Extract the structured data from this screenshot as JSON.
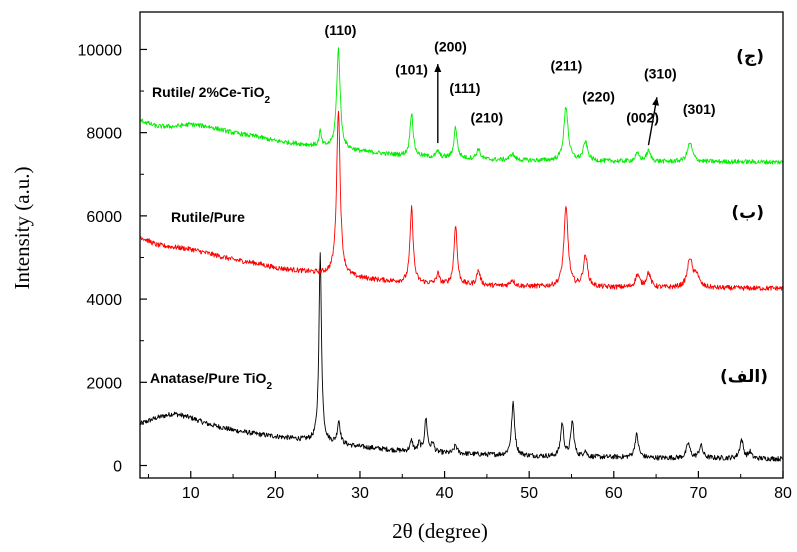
{
  "chart_data": {
    "type": "line",
    "xlabel": "2θ (degree)",
    "ylabel": "Intensity (a.u.)",
    "xlim": [
      4,
      80
    ],
    "ylim": [
      -300,
      10900
    ],
    "x_ticks": [
      10,
      20,
      30,
      40,
      50,
      60,
      70,
      80
    ],
    "y_ticks": [
      0,
      2000,
      4000,
      6000,
      8000,
      10000
    ],
    "x_tick_labels": [
      "10",
      "20",
      "30",
      "40",
      "50",
      "60",
      "70",
      "80"
    ],
    "y_tick_labels": [
      "0",
      "2000",
      "4000",
      "6000",
      "8000",
      "10000"
    ],
    "grid": false,
    "series": [
      {
        "name": "Anatase/Pure TiO",
        "name_subscript": "2",
        "tag": "(الف)",
        "color": "#000000",
        "background": [
          [
            4,
            1000
          ],
          [
            6,
            1150
          ],
          [
            8,
            1250
          ],
          [
            10,
            1150
          ],
          [
            12,
            1000
          ],
          [
            15,
            850
          ],
          [
            18,
            750
          ],
          [
            20,
            700
          ],
          [
            22,
            650
          ],
          [
            24,
            600
          ],
          [
            26,
            550
          ],
          [
            30,
            450
          ],
          [
            35,
            350
          ],
          [
            40,
            300
          ],
          [
            45,
            260
          ],
          [
            50,
            230
          ],
          [
            55,
            200
          ],
          [
            60,
            200
          ],
          [
            65,
            180
          ],
          [
            70,
            180
          ],
          [
            75,
            170
          ],
          [
            80,
            160
          ]
        ],
        "noise": 60,
        "peaks": [
          [
            25.3,
            4500,
            0.18
          ],
          [
            27.5,
            550,
            0.2
          ],
          [
            36.1,
            250,
            0.2
          ],
          [
            37.0,
            200,
            0.15
          ],
          [
            37.8,
            800,
            0.2
          ],
          [
            38.6,
            220,
            0.18
          ],
          [
            41.3,
            200,
            0.2
          ],
          [
            48.1,
            1250,
            0.22
          ],
          [
            53.9,
            800,
            0.22
          ],
          [
            55.1,
            850,
            0.22
          ],
          [
            56.6,
            150,
            0.2
          ],
          [
            62.7,
            550,
            0.25
          ],
          [
            68.8,
            350,
            0.25
          ],
          [
            70.3,
            300,
            0.25
          ],
          [
            75.1,
            450,
            0.25
          ],
          [
            76.1,
            150,
            0.2
          ]
        ]
      },
      {
        "name": "Rutile/Pure",
        "tag": "(ب)",
        "color": "#ff0000",
        "background": [
          [
            4,
            5500
          ],
          [
            6,
            5300
          ],
          [
            8,
            5250
          ],
          [
            10,
            5200
          ],
          [
            12,
            5100
          ],
          [
            15,
            4950
          ],
          [
            18,
            4850
          ],
          [
            20,
            4750
          ],
          [
            22,
            4700
          ],
          [
            24,
            4650
          ],
          [
            26,
            4600
          ],
          [
            30,
            4500
          ],
          [
            35,
            4400
          ],
          [
            40,
            4350
          ],
          [
            45,
            4320
          ],
          [
            50,
            4300
          ],
          [
            55,
            4280
          ],
          [
            60,
            4280
          ],
          [
            65,
            4270
          ],
          [
            70,
            4270
          ],
          [
            75,
            4260
          ],
          [
            80,
            4260
          ]
        ],
        "noise": 60,
        "peaks": [
          [
            27.45,
            4000,
            0.25
          ],
          [
            36.1,
            1800,
            0.22
          ],
          [
            39.2,
            250,
            0.2
          ],
          [
            41.3,
            1450,
            0.22
          ],
          [
            44.0,
            350,
            0.25
          ],
          [
            48.0,
            150,
            0.3
          ],
          [
            54.35,
            1900,
            0.3
          ],
          [
            56.65,
            750,
            0.3
          ],
          [
            62.8,
            300,
            0.3
          ],
          [
            64.1,
            350,
            0.3
          ],
          [
            69.0,
            700,
            0.35
          ],
          [
            69.8,
            300,
            0.3
          ]
        ]
      },
      {
        "name": "Rutile/ 2%Ce-TiO",
        "name_subscript": "2",
        "tag": "(ج)",
        "color": "#00ee00",
        "background": [
          [
            4,
            8300
          ],
          [
            6,
            8150
          ],
          [
            8,
            8150
          ],
          [
            10,
            8200
          ],
          [
            12,
            8150
          ],
          [
            15,
            8000
          ],
          [
            18,
            7900
          ],
          [
            20,
            7800
          ],
          [
            22,
            7750
          ],
          [
            24,
            7700
          ],
          [
            26,
            7650
          ],
          [
            30,
            7550
          ],
          [
            35,
            7450
          ],
          [
            40,
            7400
          ],
          [
            45,
            7350
          ],
          [
            50,
            7330
          ],
          [
            55,
            7320
          ],
          [
            60,
            7310
          ],
          [
            65,
            7300
          ],
          [
            70,
            7300
          ],
          [
            75,
            7300
          ],
          [
            80,
            7290
          ]
        ],
        "noise": 55,
        "peaks": [
          [
            25.3,
            350,
            0.15
          ],
          [
            27.45,
            2400,
            0.25
          ],
          [
            36.1,
            1050,
            0.22
          ],
          [
            39.2,
            150,
            0.2
          ],
          [
            41.3,
            750,
            0.22
          ],
          [
            44.0,
            250,
            0.25
          ],
          [
            48.0,
            150,
            0.3
          ],
          [
            54.35,
            1300,
            0.3
          ],
          [
            56.65,
            450,
            0.3
          ],
          [
            62.8,
            180,
            0.3
          ],
          [
            64.1,
            250,
            0.3
          ],
          [
            69.0,
            450,
            0.35
          ]
        ]
      }
    ],
    "peak_labels": [
      {
        "text": "(110)",
        "x": 27.7,
        "y": 10350
      },
      {
        "text": "(200)",
        "x": 40.7,
        "y": 9950
      },
      {
        "text": "(101)",
        "x": 36.1,
        "y": 9400
      },
      {
        "text": "(111)",
        "x": 42.4,
        "y": 8950
      },
      {
        "text": "(210)",
        "x": 45.0,
        "y": 8250
      },
      {
        "text": "(211)",
        "x": 54.4,
        "y": 9500
      },
      {
        "text": "(220)",
        "x": 58.2,
        "y": 8750
      },
      {
        "text": "(310)",
        "x": 65.5,
        "y": 9300
      },
      {
        "text": "(002)",
        "x": 63.4,
        "y": 8250
      },
      {
        "text": "(301)",
        "x": 70.1,
        "y": 8450
      }
    ],
    "arrows": [
      {
        "x1": 39.2,
        "y1": 7750,
        "x2": 39.2,
        "y2": 9650
      },
      {
        "x1": 64.1,
        "y1": 7700,
        "x2": 65.1,
        "y2": 8850
      }
    ]
  }
}
